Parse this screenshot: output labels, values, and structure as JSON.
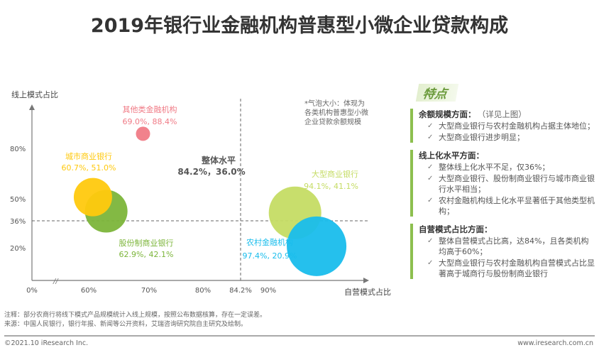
{
  "title": "2019年银行业金融机构普惠型小微企业贷款构成",
  "chart_data": {
    "type": "scatter",
    "subtype": "bubble",
    "xlabel": "自营模式占比",
    "ylabel": "线上模式占比",
    "x_ticks": [
      "0%",
      "60%",
      "70%",
      "80%",
      "84.2%",
      "90%"
    ],
    "x_tick_values": [
      0,
      60,
      70,
      80,
      84.2,
      90
    ],
    "y_ticks": [
      "80%",
      "50%",
      "36%",
      "20%"
    ],
    "y_tick_values": [
      80,
      50,
      36,
      20
    ],
    "axis_break": "x",
    "grid": false,
    "bubble_note": "*气泡大小：体现为各类机构普惠型小微企业贷款余额规模",
    "reference": {
      "name": "整体水平",
      "label": "84.2%，36.0%",
      "x": 84.2,
      "y": 36.0
    },
    "series": [
      {
        "name": "其他类金融机构",
        "label": "69.0%, 88.4%",
        "x": 69.0,
        "y": 88.4,
        "color": "#f07b86"
      },
      {
        "name": "股份制商业银行",
        "label": "62.9%, 42.1%",
        "x": 62.9,
        "y": 42.1,
        "color": "#7cb53a"
      },
      {
        "name": "城市商业银行",
        "label": "60.7%, 51.0%",
        "x": 60.7,
        "y": 51.0,
        "color": "#ffc90e"
      },
      {
        "name": "大型商业银行",
        "label": "94.1%, 41.1%",
        "x": 94.1,
        "y": 41.1,
        "color": "#c5dc64"
      },
      {
        "name": "农村金融机构",
        "label": "97.4%, 20.9%",
        "x": 97.4,
        "y": 20.9,
        "color": "#19bdec"
      }
    ]
  },
  "side": {
    "heading": "特点",
    "sections": [
      {
        "title": "余额规模方面：",
        "note": "（详见上图）",
        "items": [
          "大型商业银行与农村金融机构占据主体地位；",
          "大型商业银行进步明显；"
        ]
      },
      {
        "title": "线上化水平方面：",
        "note": "",
        "items": [
          "整体线上化水平不足，仅36%；",
          "大型商业银行、股份制商业银行与城市商业银行水平相当；",
          "农村金融机构线上化水平显著低于其他类型机构；"
        ]
      },
      {
        "title": "自营模式占比方面：",
        "note": "",
        "items": [
          "整体自营模式占比高，达84%，且各类机构均高于60%；",
          "大型商业银行与农村金融机构自营模式占比显著高于城商行与股份制商业银行"
        ]
      }
    ]
  },
  "footer": {
    "note": "注释：部分农商行将线下模式产品规模统计入线上规模，按照公布数据核算，存在一定误差。",
    "source": "来源：中国人民银行，银行年报、新闻等公开资料，艾瑞咨询研究院自主研究及绘制。",
    "copyright": "©2021.10 iResearch Inc.",
    "website": "www.iresearch.com.cn"
  }
}
